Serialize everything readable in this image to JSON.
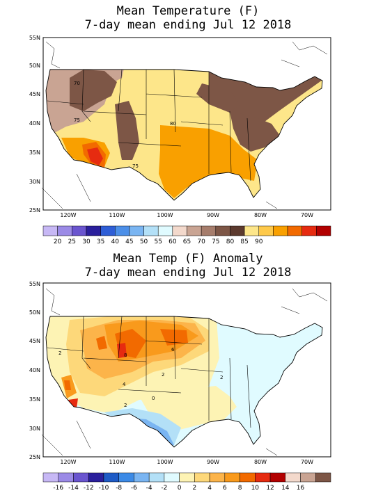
{
  "panels": [
    {
      "title1": "Mean Temperature (F)",
      "title2": "7-day mean ending Jul 12 2018",
      "lat_labels": [
        "55N",
        "50N",
        "45N",
        "40N",
        "35N",
        "30N",
        "25N"
      ],
      "lon_labels": [
        "120W",
        "110W",
        "100W",
        "90W",
        "80W",
        "70W"
      ],
      "contour_labels": [
        "70",
        "75",
        "80",
        "75"
      ],
      "colorbar_colors": [
        "#c7b8f5",
        "#9b8ae6",
        "#6a55cf",
        "#2a1f9c",
        "#2e5ed6",
        "#4c8fe8",
        "#7ab5f2",
        "#b3e0f7",
        "#e0fbff",
        "#f3d9cc",
        "#c9a493",
        "#a67d6c",
        "#7d5646",
        "#5c3a2e",
        "#fde68a",
        "#fec94a",
        "#f9a000",
        "#f26a00",
        "#e62b10",
        "#b20000"
      ],
      "colorbar_labels": [
        "20",
        "25",
        "30",
        "35",
        "40",
        "45",
        "50",
        "55",
        "60",
        "65",
        "70",
        "75",
        "80",
        "85",
        "90"
      ]
    },
    {
      "title1": "Mean Temp (F) Anomaly",
      "title2": "7-day mean ending Jul 12 2018",
      "lat_labels": [
        "55N",
        "50N",
        "45N",
        "40N",
        "35N",
        "30N",
        "25N"
      ],
      "lon_labels": [
        "120W",
        "110W",
        "100W",
        "90W",
        "80W",
        "70W"
      ],
      "contour_labels": [
        "8",
        "6",
        "4",
        "2",
        "2",
        "2",
        "0",
        "2"
      ],
      "colorbar_colors": [
        "#c7b8f5",
        "#9b8ae6",
        "#6a55cf",
        "#2a1f9c",
        "#1e5bc6",
        "#3c8ae6",
        "#7ab5f2",
        "#b3e0f7",
        "#e0fbff",
        "#fdf3b4",
        "#fdd87a",
        "#fcb44a",
        "#f99a1c",
        "#f26a00",
        "#e62b10",
        "#b20000",
        "#f3d9cc",
        "#c9a493",
        "#7d5646"
      ],
      "colorbar_labels": [
        "-16",
        "-14",
        "-12",
        "-10",
        "-8",
        "-6",
        "-4",
        "-2",
        "0",
        "2",
        "4",
        "6",
        "8",
        "10",
        "12",
        "14",
        "16"
      ]
    }
  ]
}
